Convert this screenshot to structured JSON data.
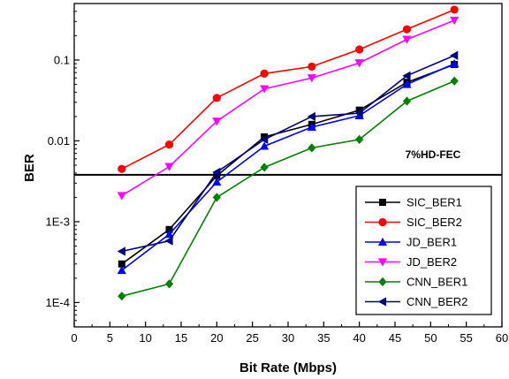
{
  "chart_data": {
    "type": "line",
    "title": "",
    "xlabel": "Bit Rate (Mbps)",
    "ylabel": "BER",
    "xlim": [
      0,
      60
    ],
    "ylim": [
      5e-05,
      0.5
    ],
    "yscale": "log",
    "x_ticks": [
      "0",
      "5",
      "10",
      "15",
      "20",
      "25",
      "30",
      "35",
      "40",
      "45",
      "50",
      "55",
      "60"
    ],
    "y_ticks": [
      "1E-4",
      "1E-3",
      "0.01",
      "0.1"
    ],
    "grid": false,
    "legend_position": "bottom-right",
    "threshold": {
      "label": "7%HD-FEC",
      "value": 0.0038
    },
    "x": [
      6.67,
      13.33,
      20,
      26.67,
      33.33,
      40,
      46.67,
      53.33
    ],
    "series": [
      {
        "name": "SIC_BER1",
        "color": "#000000",
        "marker": "square",
        "values": [
          0.0003,
          0.0008,
          0.0037,
          0.0112,
          0.016,
          0.024,
          0.053,
          0.088
        ]
      },
      {
        "name": "SIC_BER2",
        "color": "#ff0000",
        "marker": "circle",
        "values": [
          0.0045,
          0.009,
          0.034,
          0.068,
          0.083,
          0.135,
          0.24,
          0.42
        ]
      },
      {
        "name": "JD_BER1",
        "color": "#0000ff",
        "marker": "triangle-up",
        "values": [
          0.00025,
          0.0007,
          0.0031,
          0.0086,
          0.0148,
          0.0205,
          0.05,
          0.09
        ]
      },
      {
        "name": "JD_BER2",
        "color": "#ff00ff",
        "marker": "triangle-down",
        "values": [
          0.0021,
          0.0048,
          0.0175,
          0.044,
          0.06,
          0.092,
          0.18,
          0.31
        ]
      },
      {
        "name": "CNN_BER1",
        "color": "#008000",
        "marker": "diamond",
        "values": [
          0.00012,
          0.00017,
          0.002,
          0.0047,
          0.0082,
          0.0104,
          0.031,
          0.055
        ]
      },
      {
        "name": "CNN_BER2",
        "color": "#000080",
        "marker": "triangle-left",
        "values": [
          0.00043,
          0.00058,
          0.0041,
          0.0104,
          0.02,
          0.022,
          0.064,
          0.114
        ]
      }
    ]
  }
}
